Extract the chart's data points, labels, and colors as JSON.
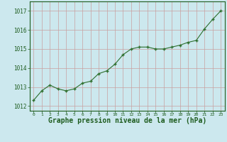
{
  "x": [
    0,
    1,
    2,
    3,
    4,
    5,
    6,
    7,
    8,
    9,
    10,
    11,
    12,
    13,
    14,
    15,
    16,
    17,
    18,
    19,
    20,
    21,
    22,
    23
  ],
  "y": [
    1012.3,
    1012.8,
    1013.1,
    1012.9,
    1012.8,
    1012.9,
    1013.2,
    1013.3,
    1013.7,
    1013.85,
    1014.2,
    1014.7,
    1015.0,
    1015.1,
    1015.1,
    1015.0,
    1015.0,
    1015.1,
    1015.2,
    1015.35,
    1015.45,
    1016.05,
    1016.55,
    1017.0
  ],
  "line_color": "#2d6e2d",
  "marker": "+",
  "marker_size": 4,
  "bg_color": "#cce8ee",
  "grid_color": "#c8a0a0",
  "xlabel": "Graphe pression niveau de la mer (hPa)",
  "xlabel_color": "#1e5c1e",
  "xlabel_fontsize": 7.0,
  "tick_color": "#1e5c1e",
  "ylim": [
    1011.75,
    1017.5
  ],
  "xlim": [
    -0.5,
    23.5
  ],
  "yticks": [
    1012,
    1013,
    1014,
    1015,
    1016,
    1017
  ],
  "xticks": [
    0,
    1,
    2,
    3,
    4,
    5,
    6,
    7,
    8,
    9,
    10,
    11,
    12,
    13,
    14,
    15,
    16,
    17,
    18,
    19,
    20,
    21,
    22,
    23
  ],
  "xtick_labels": [
    "0",
    "1",
    "2",
    "3",
    "4",
    "5",
    "6",
    "7",
    "8",
    "9",
    "10",
    "11",
    "12",
    "13",
    "14",
    "15",
    "16",
    "17",
    "18",
    "19",
    "20",
    "21",
    "22",
    "23"
  ]
}
